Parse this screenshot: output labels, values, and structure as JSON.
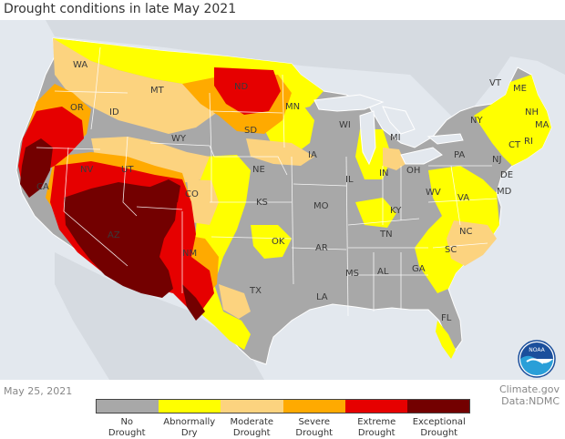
{
  "title": "Drought conditions in late May 2021",
  "date": "May 25, 2021",
  "credit": {
    "line1": "Climate.gov",
    "line2": "Data:NDMC"
  },
  "logo": {
    "text": "NOAA"
  },
  "colors": {
    "none": "#a8a8a8",
    "abnormally_dry": "#ffff00",
    "moderate": "#fcd37f",
    "severe": "#ffaa00",
    "extreme": "#e60000",
    "exceptional": "#730000",
    "water": "#e3e8ee",
    "land_outside": "#d6dbe1"
  },
  "legend": [
    {
      "line1": "No",
      "line2": "Drought",
      "color": "#a8a8a8"
    },
    {
      "line1": "Abnormally",
      "line2": "Dry",
      "color": "#ffff00"
    },
    {
      "line1": "Moderate",
      "line2": "Drought",
      "color": "#fcd37f"
    },
    {
      "line1": "Severe",
      "line2": "Drought",
      "color": "#ffaa00"
    },
    {
      "line1": "Extreme",
      "line2": "Drought",
      "color": "#e60000"
    },
    {
      "line1": "Exceptional",
      "line2": "Drought",
      "color": "#730000"
    }
  ],
  "states": [
    "WA",
    "OR",
    "ID",
    "MT",
    "ND",
    "MN",
    "WI",
    "MI",
    "VT",
    "ME",
    "NH",
    "MA",
    "NY",
    "CT",
    "RI",
    "CA",
    "NV",
    "UT",
    "WY",
    "SD",
    "NE",
    "IA",
    "IL",
    "IN",
    "OH",
    "PA",
    "NJ",
    "DE",
    "MD",
    "CO",
    "KS",
    "MO",
    "KY",
    "WV",
    "VA",
    "AZ",
    "NM",
    "OK",
    "AR",
    "TN",
    "NC",
    "SC",
    "TX",
    "MS",
    "AL",
    "GA",
    "LA",
    "FL"
  ]
}
